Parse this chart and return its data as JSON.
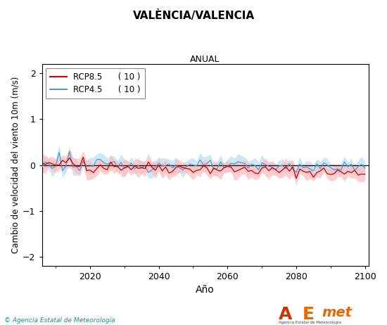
{
  "title": "VALÈNCIA/VALENCIA",
  "subtitle": "ANUAL",
  "xlabel": "Año",
  "ylabel": "Cambio de velocidad del viento 10m (m/s)",
  "ylim": [
    -2.2,
    2.2
  ],
  "yticks": [
    -2,
    -1,
    0,
    1,
    2
  ],
  "xlim": [
    2006,
    2101
  ],
  "xticks": [
    2020,
    2040,
    2060,
    2080,
    2100
  ],
  "year_start": 2006,
  "year_end": 2100,
  "rcp85_color": "#cc0000",
  "rcp45_color": "#5599cc",
  "rcp85_fill_color": "#ffbbbb",
  "rcp45_fill_color": "#bbddee",
  "legend_rcp85": "RCP8.5",
  "legend_rcp45": "RCP4.5",
  "legend_n85": "( 10 )",
  "legend_n45": "( 10 )",
  "copyright_text": "© Agencia Estatal de Meteorología",
  "background_color": "#ffffff",
  "plot_bg_color": "#ffffff"
}
